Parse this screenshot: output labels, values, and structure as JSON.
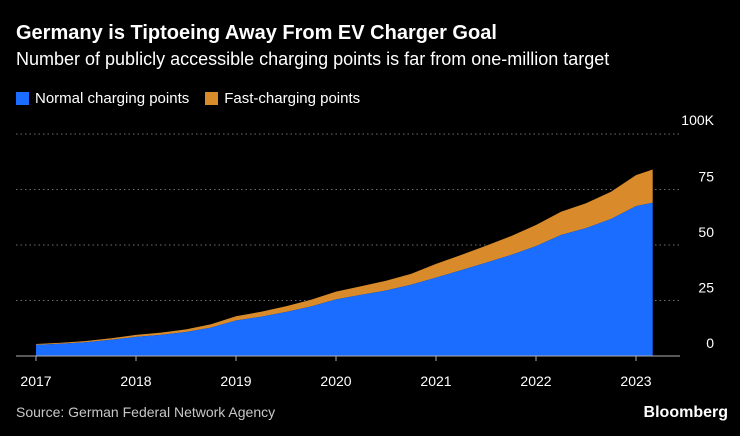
{
  "title": "Germany is Tiptoeing Away From EV Charger Goal",
  "subtitle": "Number of publicly accessible charging points is far from one-million target",
  "source": "Source: German Federal Network Agency",
  "brand": "Bloomberg",
  "colors": {
    "background": "#000000",
    "normal": "#1a6dff",
    "fast": "#d98a2b",
    "grid": "#6e6e6e"
  },
  "chart_data": {
    "type": "area",
    "stacked": true,
    "legend": "top-left",
    "grid": true,
    "x": [
      "2017-01",
      "2017-04",
      "2017-07",
      "2017-10",
      "2018-01",
      "2018-04",
      "2018-07",
      "2018-10",
      "2019-01",
      "2019-04",
      "2019-07",
      "2019-10",
      "2020-01",
      "2020-04",
      "2020-07",
      "2020-10",
      "2021-01",
      "2021-04",
      "2021-07",
      "2021-10",
      "2022-01",
      "2022-04",
      "2022-07",
      "2022-10",
      "2023-01",
      "2023-03"
    ],
    "x_tick_labels": [
      "2017",
      "2018",
      "2019",
      "2020",
      "2021",
      "2022",
      "2023"
    ],
    "ylim": [
      0,
      100000
    ],
    "y_tick_labels": [
      "0",
      "25",
      "50",
      "75",
      "100K"
    ],
    "series": [
      {
        "name": "Normal charging points",
        "color": "#1a6dff",
        "values": [
          5000,
          5500,
          6200,
          7300,
          8600,
          9500,
          10800,
          12800,
          16000,
          17700,
          19800,
          22300,
          25500,
          27500,
          29500,
          32100,
          35300,
          38600,
          42000,
          45500,
          49500,
          54500,
          57600,
          61700,
          67500,
          69000
        ]
      },
      {
        "name": "Fast-charging points",
        "color": "#d98a2b",
        "values": [
          400,
          450,
          550,
          700,
          900,
          1050,
          1200,
          1500,
          1900,
          2200,
          2600,
          3000,
          3500,
          3900,
          4400,
          4900,
          6200,
          6900,
          7700,
          8500,
          9500,
          10500,
          11200,
          12300,
          14000,
          15000
        ]
      }
    ]
  }
}
